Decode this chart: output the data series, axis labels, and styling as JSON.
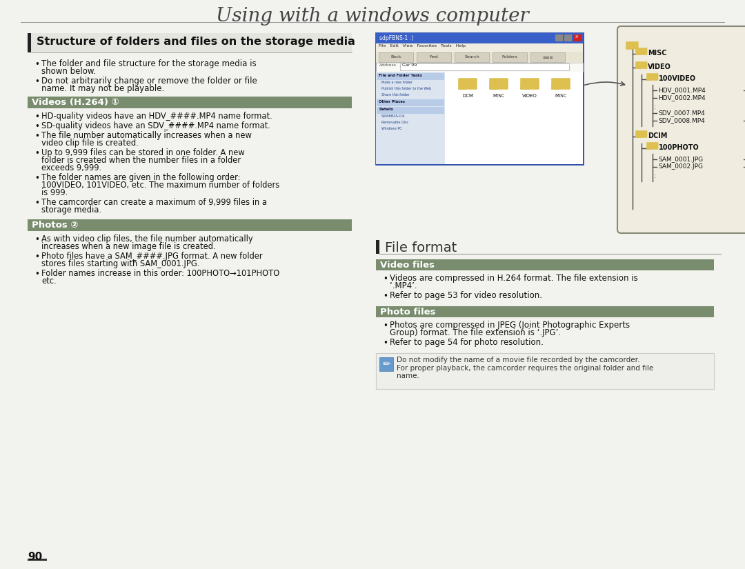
{
  "page_bg": "#f2f2ee",
  "title": "Using with a windows computer",
  "title_fontsize": 20,
  "title_color": "#333333",
  "page_number": "90",
  "section1_title": "Structure of folders and files on the storage media",
  "section1_bar_color": "#2a2a2a",
  "section1_bullets": [
    "The folder and file structure for the storage media is shown below.",
    "Do not arbitrarily change or remove the folder or file name. It may not be playable."
  ],
  "subsection1_title": "Videos (H.264) ①",
  "subsection1_bg": "#7a8c6e",
  "subsection1_text_color": "#ffffff",
  "subsection1_bullets": [
    "HD-quality videos have an HDV_####.MP4 name format.",
    "SD-quality videos have an SDV_####.MP4 name format.",
    "The file number automatically increases when a new video clip file is created.",
    "Up to 9,999 files can be stored in one folder. A new folder is created when the number files in a folder exceeds 9,999.",
    "The folder names are given in the following order: 100VIDEO, 101VIDEO, etc. The maximum number of folders is 999.",
    "The camcorder can create a maximum of 9,999 files in a storage media."
  ],
  "subsection2_title": "Photos ②",
  "subsection2_bg": "#7a8c6e",
  "subsection2_bullets": [
    "As with video clip files, the file number automatically increases when a new image file is created.",
    "Photo files have a SAM_####.JPG format. A new folder stores files starting with SAM_0001.JPG.",
    "Folder names increase in this order: 100PHOTO→101PHOTO etc."
  ],
  "section2_title": "File format",
  "subsection3_title": "Video files",
  "subsection3_bg": "#7a8c6e",
  "subsection3_bullets": [
    "Videos are compressed in H.264 format. The file extension is ‘.MP4’.",
    "Refer to page 53 for video resolution."
  ],
  "subsection4_title": "Photo files",
  "subsection4_bg": "#7a8c6e",
  "subsection4_bullets": [
    "Photos are compressed in JPEG (Joint Photographic Experts Group) format. The file extension is ‘.JPG’.",
    "Refer to page 54 for photo resolution."
  ],
  "note_text": "Do not modify the name of a movie file recorded by the camcorder.\nFor proper playback, the camcorder requires the original folder and file\nname.",
  "folder_color": "#ddc050",
  "folder_tab_color": "#c8a830",
  "tree_bg": "#f0ede0",
  "tree_border": "#888878",
  "line_color": "#444444",
  "text_color": "#111111"
}
